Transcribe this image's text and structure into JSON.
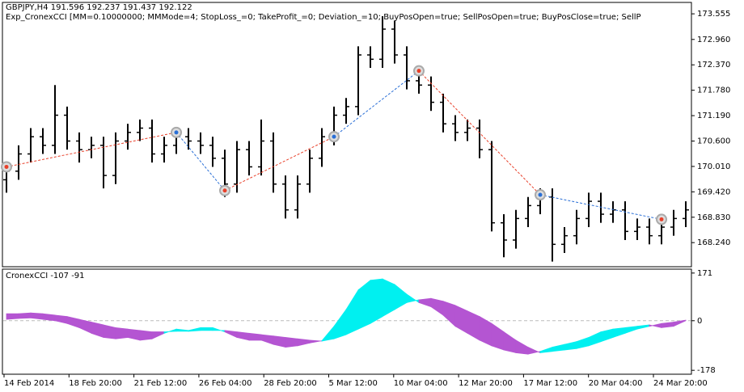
{
  "chart_data": [
    {
      "type": "ohlc",
      "title": "GBPJPY,H4  191.596 192.237 191.437 192.122",
      "subtitle": "Exp_CronexCCI [MM=0.10000000; MMMode=4; StopLoss_=0; TakeProfit_=0; Deviation_=10; BuyPosOpen=true; SellPosOpen=true; BuyPosClose=true; SellP",
      "color": "#000000",
      "open": [
        169.7,
        169.9,
        170.3,
        170.7,
        170.5,
        171.2,
        170.6,
        170.4,
        170.5,
        169.8,
        170.6,
        170.8,
        170.9,
        170.3,
        170.5,
        170.7,
        170.6,
        170.5,
        170.2,
        169.6,
        170.4,
        170.0,
        170.6,
        169.6,
        169.0,
        169.6,
        170.2,
        170.7,
        171.2,
        171.4,
        172.6,
        172.5,
        173.2,
        172.6,
        172.0,
        171.9,
        171.5,
        171.0,
        170.8,
        170.9,
        170.4,
        168.7,
        168.3,
        168.8,
        169.1,
        169.3,
        168.2,
        168.4,
        168.8,
        169.2,
        168.9,
        169.0,
        168.5,
        168.6,
        168.4,
        168.6,
        168.8
      ],
      "high": [
        170.1,
        170.5,
        170.9,
        170.9,
        171.9,
        171.4,
        170.8,
        170.7,
        170.7,
        170.8,
        171.0,
        171.1,
        171.1,
        170.7,
        170.9,
        170.9,
        170.8,
        170.7,
        170.4,
        170.6,
        170.6,
        171.1,
        170.8,
        169.8,
        169.8,
        170.4,
        170.9,
        171.4,
        171.6,
        172.8,
        172.8,
        173.5,
        173.4,
        172.8,
        172.2,
        172.1,
        171.7,
        171.2,
        171.1,
        171.1,
        170.6,
        168.9,
        169.0,
        169.3,
        169.5,
        169.5,
        168.6,
        169.0,
        169.4,
        169.4,
        169.2,
        169.2,
        168.8,
        168.8,
        168.8,
        169.0,
        169.2
      ],
      "low": [
        169.4,
        169.7,
        170.1,
        170.3,
        170.3,
        170.4,
        170.1,
        170.2,
        169.5,
        169.6,
        170.4,
        170.6,
        170.1,
        170.1,
        170.3,
        170.4,
        170.3,
        170.0,
        169.3,
        169.4,
        169.8,
        169.8,
        169.4,
        168.8,
        168.8,
        169.4,
        170.0,
        170.5,
        171.0,
        171.2,
        172.3,
        172.3,
        172.4,
        171.8,
        171.7,
        171.3,
        170.8,
        170.6,
        170.6,
        170.2,
        168.5,
        167.9,
        168.1,
        168.6,
        168.9,
        167.8,
        168.0,
        168.2,
        168.6,
        168.7,
        168.7,
        168.3,
        168.3,
        168.2,
        168.2,
        168.4,
        168.6
      ],
      "close": [
        169.9,
        170.3,
        170.7,
        170.5,
        171.2,
        170.6,
        170.4,
        170.5,
        169.8,
        170.6,
        170.8,
        170.9,
        170.3,
        170.5,
        170.7,
        170.6,
        170.5,
        170.2,
        169.6,
        170.4,
        170.0,
        170.6,
        169.6,
        169.0,
        169.6,
        170.2,
        170.7,
        171.2,
        171.4,
        172.6,
        172.5,
        173.2,
        172.6,
        172.0,
        171.9,
        171.5,
        171.0,
        170.8,
        170.9,
        170.4,
        168.7,
        168.3,
        168.8,
        169.1,
        169.3,
        168.2,
        168.4,
        168.8,
        169.2,
        168.9,
        169.0,
        168.5,
        168.6,
        168.4,
        168.6,
        168.8,
        169.0
      ],
      "trades": {
        "x": [
          0,
          14,
          18,
          27,
          34,
          44,
          54
        ],
        "price": [
          170.0,
          170.8,
          169.45,
          170.7,
          172.23,
          169.35,
          168.78
        ],
        "colors": [
          "#e8402a",
          "#2a6fd6",
          "#e8402a",
          "#2a6fd6",
          "#e8402a",
          "#2a6fd6",
          "#e8402a"
        ]
      },
      "ylim": [
        167.68,
        173.82
      ],
      "yticks": [
        173.555,
        {
          "value": 172.96,
          "label": "172.960"
        },
        {
          "value": 172.37,
          "label": "172.370"
        },
        {
          "value": 171.78,
          "label": "171.780"
        },
        {
          "value": 171.19,
          "label": "171.190"
        },
        {
          "value": 170.6,
          "label": "170.600"
        },
        {
          "value": 170.01,
          "label": "170.010"
        },
        {
          "value": 169.42,
          "label": "169.420"
        },
        {
          "value": 168.83,
          "label": "168.830"
        },
        {
          "value": 168.24,
          "label": "168.240"
        }
      ],
      "x_labels": [
        "14 Feb 2014",
        "18 Feb 20:00",
        "21 Feb 12:00",
        "26 Feb 04:00",
        "28 Feb 20:00",
        "5 Mar 12:00",
        "10 Mar 04:00",
        "12 Mar 20:00",
        "17 Mar 12:00",
        "20 Mar 04:00",
        "24 Mar 20:00"
      ]
    },
    {
      "type": "band",
      "title": "CronexCCI -107 -91",
      "series": [
        {
          "color": "#00f0f0",
          "values": [
            5,
            8,
            10,
            5,
            0,
            -10,
            -25,
            -45,
            -60,
            -65,
            -60,
            -70,
            -65,
            -45,
            -30,
            -35,
            -25,
            -25,
            -40,
            -60,
            -70,
            -70,
            -85,
            -95,
            -90,
            -80,
            -72,
            -20,
            40,
            110,
            145,
            150,
            130,
            95,
            65,
            50,
            20,
            -20,
            -45,
            -70,
            -90,
            -105,
            -115,
            -120,
            -110,
            -95,
            -85,
            -75,
            -60,
            -40,
            -30,
            -25,
            -20,
            -15,
            -25,
            -20,
            0
          ]
        },
        {
          "color": "#b455d2",
          "values": [
            25,
            25,
            28,
            25,
            20,
            15,
            5,
            -5,
            -15,
            -25,
            -30,
            -35,
            -40,
            -40,
            -38,
            -38,
            -35,
            -35,
            -35,
            -40,
            -45,
            -50,
            -55,
            -60,
            -65,
            -70,
            -73,
            -65,
            -50,
            -30,
            -10,
            15,
            40,
            65,
            75,
            80,
            70,
            55,
            35,
            15,
            -10,
            -40,
            -70,
            -95,
            -115,
            -110,
            -105,
            -100,
            -90,
            -75,
            -60,
            -45,
            -30,
            -20,
            -10,
            -5,
            2
          ]
        }
      ],
      "ylim": [
        -192,
        185
      ],
      "yticks": [
        171,
        0,
        -178
      ]
    }
  ]
}
